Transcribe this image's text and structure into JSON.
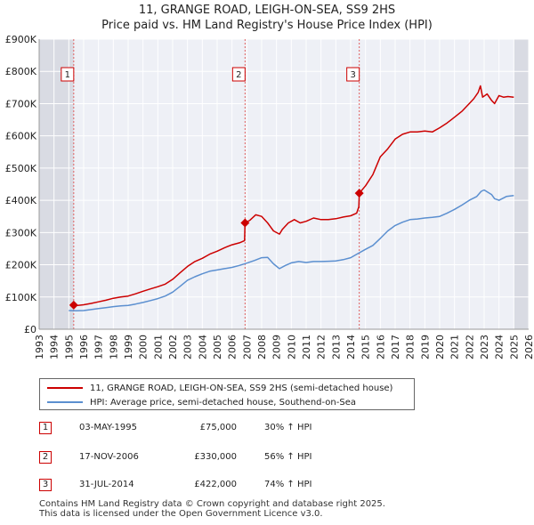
{
  "title_line1": "11, GRANGE ROAD, LEIGH-ON-SEA, SS9 2HS",
  "title_line2": "Price paid vs. HM Land Registry's House Price Index (HPI)",
  "chart_data": {
    "type": "line",
    "title": "11, GRANGE ROAD, LEIGH-ON-SEA, SS9 2HS — Price paid vs. HM Land Registry's House Price Index (HPI)",
    "xlim": [
      1993,
      2026
    ],
    "ylim": [
      0,
      900000
    ],
    "x_ticks": [
      "1993",
      "1994",
      "1995",
      "1996",
      "1997",
      "1998",
      "1999",
      "2000",
      "2001",
      "2002",
      "2003",
      "2004",
      "2005",
      "2006",
      "2007",
      "2008",
      "2009",
      "2010",
      "2011",
      "2012",
      "2013",
      "2014",
      "2015",
      "2016",
      "2017",
      "2018",
      "2019",
      "2020",
      "2021",
      "2022",
      "2023",
      "2024",
      "2025",
      "2026"
    ],
    "y_ticks": [
      {
        "value": 0,
        "label": "£0"
      },
      {
        "value": 100000,
        "label": "£100K"
      },
      {
        "value": 200000,
        "label": "£200K"
      },
      {
        "value": 300000,
        "label": "£300K"
      },
      {
        "value": 400000,
        "label": "£400K"
      },
      {
        "value": 500000,
        "label": "£500K"
      },
      {
        "value": 600000,
        "label": "£600K"
      },
      {
        "value": 700000,
        "label": "£700K"
      },
      {
        "value": 800000,
        "label": "£800K"
      },
      {
        "value": 900000,
        "label": "£900K"
      }
    ],
    "grid": true,
    "shaded_ranges": [
      [
        1993,
        1995.33
      ],
      [
        2025.0,
        2026
      ]
    ],
    "series": [
      {
        "name": "11, GRANGE ROAD, LEIGH-ON-SEA, SS9 2HS (semi-detached house)",
        "color": "#cc0000",
        "x": [
          1995.33,
          1995.6,
          1996,
          1996.5,
          1997,
          1997.5,
          1998,
          1998.5,
          1999,
          1999.5,
          2000,
          2000.5,
          2001,
          2001.5,
          2002,
          2002.5,
          2003,
          2003.5,
          2004,
          2004.5,
          2005,
          2005.5,
          2006,
          2006.5,
          2006.85,
          2006.88,
          2007.2,
          2007.6,
          2008,
          2008.4,
          2008.8,
          2009.2,
          2009.4,
          2009.8,
          2010.2,
          2010.6,
          2011,
          2011.5,
          2012,
          2012.5,
          2013,
          2013.5,
          2014,
          2014.4,
          2014.55,
          2014.58,
          2015,
          2015.5,
          2016,
          2016.5,
          2017,
          2017.5,
          2018,
          2018.5,
          2019,
          2019.5,
          2020,
          2020.5,
          2021,
          2021.5,
          2022,
          2022.3,
          2022.6,
          2022.75,
          2022.9,
          2023.2,
          2023.5,
          2023.7,
          2024,
          2024.3,
          2024.6,
          2025
        ],
        "values": [
          75000,
          74000,
          76000,
          80000,
          85000,
          90000,
          96000,
          100000,
          103000,
          110000,
          118000,
          125000,
          132000,
          140000,
          155000,
          175000,
          195000,
          210000,
          220000,
          233000,
          242000,
          253000,
          262000,
          268000,
          275000,
          330000,
          338000,
          355000,
          350000,
          330000,
          305000,
          295000,
          310000,
          330000,
          340000,
          330000,
          335000,
          345000,
          340000,
          340000,
          343000,
          348000,
          352000,
          360000,
          380000,
          422000,
          445000,
          480000,
          535000,
          560000,
          590000,
          605000,
          612000,
          612000,
          615000,
          612000,
          625000,
          640000,
          658000,
          676000,
          700000,
          715000,
          735000,
          755000,
          720000,
          730000,
          710000,
          700000,
          725000,
          720000,
          722000,
          720000
        ]
      },
      {
        "name": "HPI: Average price, semi-detached house, Southend-on-Sea",
        "color": "#5b8fd0",
        "x": [
          1995,
          1995.5,
          1996,
          1996.5,
          1997,
          1997.5,
          1998,
          1998.5,
          1999,
          1999.5,
          2000,
          2000.5,
          2001,
          2001.5,
          2002,
          2002.5,
          2003,
          2003.5,
          2004,
          2004.5,
          2005,
          2005.5,
          2006,
          2006.5,
          2007,
          2007.5,
          2008,
          2008.4,
          2008.8,
          2009.2,
          2009.6,
          2010,
          2010.5,
          2011,
          2011.5,
          2012,
          2012.5,
          2013,
          2013.5,
          2014,
          2014.5,
          2015,
          2015.5,
          2016,
          2016.5,
          2017,
          2017.5,
          2018,
          2018.5,
          2019,
          2019.5,
          2020,
          2020.5,
          2021,
          2021.5,
          2022,
          2022.5,
          2022.8,
          2023,
          2023.5,
          2023.7,
          2024,
          2024.5,
          2025
        ],
        "values": [
          58000,
          57500,
          58000,
          61000,
          64000,
          67000,
          70000,
          72500,
          74000,
          78000,
          83000,
          89000,
          95000,
          103000,
          115000,
          133000,
          152000,
          163000,
          172000,
          180000,
          184000,
          188000,
          192000,
          198000,
          205000,
          213000,
          222000,
          223000,
          203000,
          188000,
          198000,
          206000,
          210000,
          207000,
          210000,
          210000,
          211000,
          212000,
          216000,
          222000,
          235000,
          248000,
          260000,
          282000,
          305000,
          322000,
          332000,
          340000,
          342000,
          345000,
          347000,
          350000,
          360000,
          372000,
          385000,
          400000,
          412000,
          428000,
          432000,
          418000,
          405000,
          400000,
          412000,
          415000
        ]
      }
    ],
    "sales": [
      {
        "label": "1",
        "date": "03-MAY-1995",
        "x": 1995.33,
        "price": 75000,
        "price_label": "£75,000",
        "hpi": "30% ↑ HPI"
      },
      {
        "label": "2",
        "date": "17-NOV-2006",
        "x": 2006.88,
        "price": 330000,
        "price_label": "£330,000",
        "hpi": "56% ↑ HPI"
      },
      {
        "label": "3",
        "date": "31-JUL-2014",
        "x": 2014.58,
        "price": 422000,
        "price_label": "£422,000",
        "hpi": "74% ↑ HPI"
      }
    ]
  },
  "legend": {
    "red_label": "11, GRANGE ROAD, LEIGH-ON-SEA, SS9 2HS (semi-detached house)",
    "blue_label": "HPI: Average price, semi-detached house, Southend-on-Sea"
  },
  "footer": {
    "line1": "Contains HM Land Registry data © Crown copyright and database right 2025.",
    "line2": "This data is licensed under the Open Government Licence v3.0."
  }
}
